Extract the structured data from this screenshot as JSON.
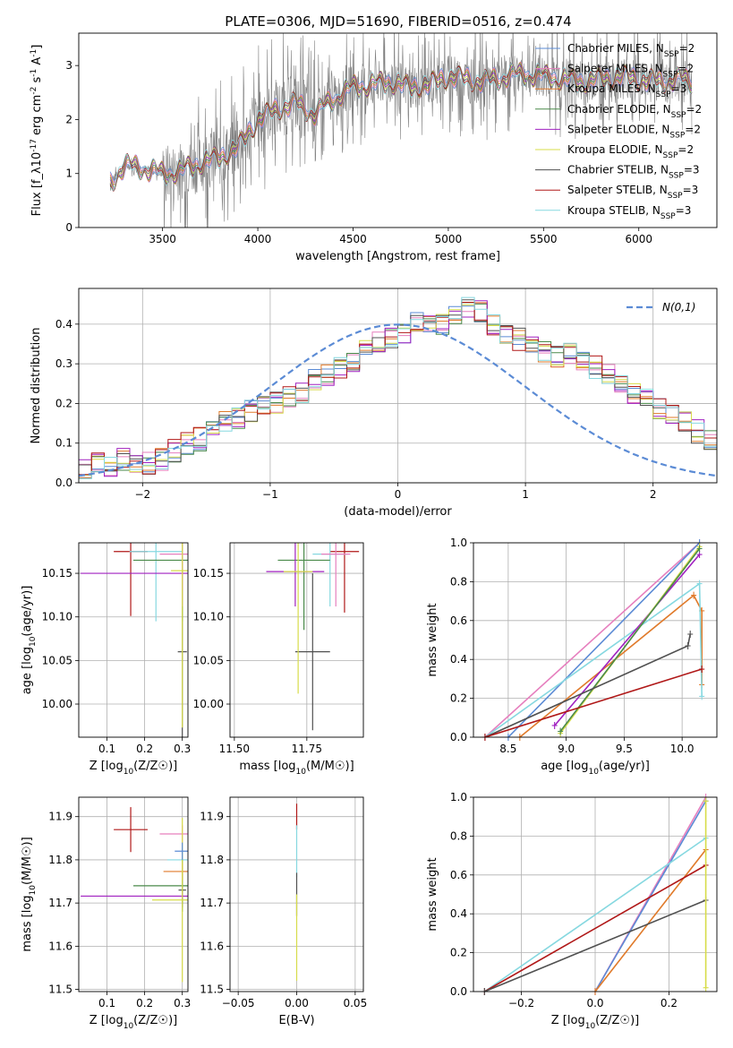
{
  "title": "PLATE=0306, MJD=51690, FIBERID=0516, z=0.474",
  "colors": {
    "chabrier_miles": "#5b8bd5",
    "salpeter_miles": "#e67fbe",
    "kroupa_miles": "#e07a2a",
    "chabrier_elodie": "#4a8a4a",
    "salpeter_elodie": "#a020c0",
    "kroupa_elodie": "#d7dc4a",
    "chabrier_stelib": "#505050",
    "salpeter_stelib": "#b01818",
    "kroupa_stelib": "#86d8e0",
    "data": "#808080",
    "normal": "#5b8bd5"
  },
  "chart_data": [
    {
      "id": "spectrum",
      "type": "line",
      "title": "PLATE=0306, MJD=51690, FIBERID=0516, z=0.474",
      "xlabel": "wavelength [Angstrom, rest frame]",
      "ylabel": "Flux [f_λ10^{-17} erg cm^{-2} s^{-1} A^{-1}]",
      "xlim": [
        3060,
        6410
      ],
      "ylim": [
        0,
        3.6
      ],
      "xticks": [
        3500,
        4000,
        4500,
        5000,
        5500,
        6000
      ],
      "yticks": [
        0,
        1,
        2,
        3
      ],
      "legend_position": "top-right",
      "legend": [
        {
          "label": "Chabrier MILES, N_SSP=2",
          "color": "#5b8bd5"
        },
        {
          "label": "Salpeter MILES, N_SSP=2",
          "color": "#e67fbe"
        },
        {
          "label": "Kroupa MILES, N_SSP=3",
          "color": "#e07a2a"
        },
        {
          "label": "Chabrier ELODIE, N_SSP=2",
          "color": "#4a8a4a"
        },
        {
          "label": "Salpeter ELODIE, N_SSP=2",
          "color": "#a020c0"
        },
        {
          "label": "Kroupa ELODIE, N_SSP=2",
          "color": "#d7dc4a"
        },
        {
          "label": "Chabrier STELIB, N_SSP=3",
          "color": "#505050"
        },
        {
          "label": "Salpeter STELIB, N_SSP=3",
          "color": "#b01818"
        },
        {
          "label": "Kroupa STELIB, N_SSP=3",
          "color": "#86d8e0"
        }
      ],
      "continuum_x": [
        3220,
        3300,
        3400,
        3500,
        3600,
        3700,
        3800,
        3900,
        4000,
        4100,
        4200,
        4300,
        4400,
        4500,
        4600,
        4700,
        4800,
        4900,
        5000,
        5100,
        5200,
        5300,
        5400,
        5500,
        5600,
        5700,
        5800,
        5900,
        6000,
        6100,
        6200,
        6280
      ],
      "continuum_y": [
        0.8,
        1.15,
        1.1,
        1.0,
        1.05,
        1.2,
        1.3,
        1.5,
        2.0,
        2.2,
        2.3,
        2.1,
        2.4,
        2.6,
        2.65,
        2.7,
        2.6,
        2.65,
        2.8,
        2.75,
        2.7,
        2.8,
        2.85,
        2.8,
        2.75,
        2.7,
        2.75,
        2.8,
        2.75,
        2.7,
        2.75,
        2.7
      ]
    },
    {
      "id": "residuals",
      "type": "bar",
      "xlabel": "(data-model)/error",
      "ylabel": "Normed distribution",
      "xlim": [
        -2.5,
        2.5
      ],
      "ylim": [
        0,
        0.49
      ],
      "xticks": [
        -2,
        -1,
        0,
        1,
        2
      ],
      "yticks": [
        0.0,
        0.1,
        0.2,
        0.3,
        0.4
      ],
      "grid": true,
      "legend_position": "top-right",
      "normal_label": "N(0,1)",
      "bin_width": 0.1,
      "hist_envelope": [
        0.02,
        0.03,
        0.05,
        0.04,
        0.06,
        0.05,
        0.05,
        0.06,
        0.08,
        0.1,
        0.11,
        0.13,
        0.15,
        0.16,
        0.18,
        0.2,
        0.2,
        0.22,
        0.23,
        0.26,
        0.27,
        0.29,
        0.3,
        0.33,
        0.35,
        0.37,
        0.38,
        0.4,
        0.41,
        0.4,
        0.42,
        0.44,
        0.43,
        0.4,
        0.38,
        0.36,
        0.35,
        0.33,
        0.32,
        0.33,
        0.31,
        0.29,
        0.27,
        0.24,
        0.22,
        0.21,
        0.19,
        0.17,
        0.15,
        0.13,
        0.11,
        0.1
      ]
    },
    {
      "id": "age_vs_Z",
      "type": "scatter",
      "xlabel": "Z [log10(Z/Z☉)]",
      "ylabel": "age [log10(age/yr)]",
      "xlim": [
        0.025,
        0.315
      ],
      "ylim": [
        9.962,
        10.185
      ],
      "xticks": [
        0.1,
        0.2,
        0.3
      ],
      "yticks": [
        10.0,
        10.05,
        10.1,
        10.15
      ],
      "grid": true,
      "points": [
        {
          "x": 0.163,
          "y": 10.175,
          "xerr": 0.045,
          "yerr": 0.074,
          "color": "#b01818"
        },
        {
          "x": 0.3,
          "y": 10.06,
          "xerr": 0.012,
          "yerr": 0.1,
          "color": "#505050"
        },
        {
          "x": 0.23,
          "y": 10.175,
          "xerr": 0.07,
          "yerr": 0.08,
          "color": "#86d8e0"
        },
        {
          "x": 0.3,
          "y": 10.165,
          "xerr": 0.13,
          "yerr": 0.07,
          "color": "#4a8a4a"
        },
        {
          "x": 0.3,
          "y": 10.15,
          "xerr": 0.27,
          "yerr": 0.02,
          "color": "#a020c0"
        },
        {
          "x": 0.3,
          "y": 10.172,
          "xerr": 0.06,
          "yerr": 0.06,
          "color": "#e67fbe"
        },
        {
          "x": 0.3,
          "y": 10.153,
          "xerr": 0.03,
          "yerr": 0.18,
          "color": "#d7dc4a"
        }
      ]
    },
    {
      "id": "age_vs_mass",
      "type": "scatter",
      "xlabel": "mass [log10(M/M☉)]",
      "ylabel": "",
      "xlim": [
        11.485,
        11.945
      ],
      "ylim": [
        9.962,
        10.185
      ],
      "xticks": [
        11.5,
        11.75
      ],
      "yticks": [
        10.0,
        10.05,
        10.1,
        10.15
      ],
      "grid": true,
      "points": [
        {
          "x": 11.88,
          "y": 10.175,
          "xerr": 0.05,
          "yerr": 0.07,
          "color": "#b01818"
        },
        {
          "x": 11.77,
          "y": 10.06,
          "xerr": 0.06,
          "yerr": 0.09,
          "color": "#505050"
        },
        {
          "x": 11.83,
          "y": 10.172,
          "xerr": 0.06,
          "yerr": 0.06,
          "color": "#86d8e0"
        },
        {
          "x": 11.74,
          "y": 10.165,
          "xerr": 0.09,
          "yerr": 0.08,
          "color": "#4a8a4a"
        },
        {
          "x": 11.71,
          "y": 10.152,
          "xerr": 0.1,
          "yerr": 0.04,
          "color": "#a020c0"
        },
        {
          "x": 11.85,
          "y": 10.172,
          "xerr": 0.05,
          "yerr": 0.06,
          "color": "#e67fbe"
        },
        {
          "x": 11.72,
          "y": 10.152,
          "xerr": 0.05,
          "yerr": 0.14,
          "color": "#d7dc4a"
        }
      ]
    },
    {
      "id": "massweight_vs_age",
      "type": "line",
      "xlabel": "age [log10(age/yr)]",
      "ylabel": "mass weight",
      "xlim": [
        8.2,
        10.3
      ],
      "ylim": [
        0,
        1.0
      ],
      "xticks": [
        8.5,
        9.0,
        9.5,
        10.0
      ],
      "yticks": [
        0.0,
        0.2,
        0.4,
        0.6,
        0.8,
        1.0
      ],
      "grid": true,
      "series": [
        {
          "color": "#e67fbe",
          "x": [
            8.3,
            10.15
          ],
          "y": [
            0.0,
            1.0
          ]
        },
        {
          "color": "#5b8bd5",
          "x": [
            8.5,
            10.15
          ],
          "y": [
            0.0,
            1.0
          ]
        },
        {
          "color": "#e07a2a",
          "x": [
            8.6,
            10.1,
            10.17,
            10.17
          ],
          "y": [
            0.0,
            0.73,
            0.65,
            0.27
          ]
        },
        {
          "color": "#86d8e0",
          "x": [
            8.3,
            10.15,
            10.17
          ],
          "y": [
            0.0,
            0.79,
            0.21
          ]
        },
        {
          "color": "#a020c0",
          "x": [
            8.9,
            10.15
          ],
          "y": [
            0.06,
            0.94
          ]
        },
        {
          "color": "#d7dc4a",
          "x": [
            8.95,
            10.15
          ],
          "y": [
            0.02,
            0.98
          ]
        },
        {
          "color": "#4a8a4a",
          "x": [
            8.95,
            10.15
          ],
          "y": [
            0.03,
            0.97
          ]
        },
        {
          "color": "#505050",
          "x": [
            8.3,
            10.05,
            10.07
          ],
          "y": [
            0.0,
            0.47,
            0.53
          ]
        },
        {
          "color": "#b01818",
          "x": [
            8.3,
            10.17
          ],
          "y": [
            0.0,
            0.35
          ]
        }
      ]
    },
    {
      "id": "mass_vs_Z",
      "type": "scatter",
      "xlabel": "Z [log10(Z/Z☉)]",
      "ylabel": "mass [log10(M/M☉)]",
      "xlim": [
        0.025,
        0.315
      ],
      "ylim": [
        11.495,
        11.945
      ],
      "xticks": [
        0.1,
        0.2,
        0.3
      ],
      "yticks": [
        11.5,
        11.6,
        11.7,
        11.8,
        11.9
      ],
      "grid": true,
      "points": [
        {
          "x": 0.163,
          "y": 11.87,
          "xerr": 0.045,
          "yerr": 0.052,
          "color": "#b01818"
        },
        {
          "x": 0.3,
          "y": 11.73,
          "xerr": 0.01,
          "yerr": 0.04,
          "color": "#505050"
        },
        {
          "x": 0.3,
          "y": 11.8,
          "xerr": 0.04,
          "yerr": 0.02,
          "color": "#86d8e0"
        },
        {
          "x": 0.3,
          "y": 11.74,
          "xerr": 0.13,
          "yerr": 0.06,
          "color": "#4a8a4a"
        },
        {
          "x": 0.3,
          "y": 11.716,
          "xerr": 0.27,
          "yerr": 0.01,
          "color": "#a020c0"
        },
        {
          "x": 0.3,
          "y": 11.86,
          "xerr": 0.06,
          "yerr": 0.02,
          "color": "#e67fbe"
        },
        {
          "x": 0.3,
          "y": 11.773,
          "xerr": 0.05,
          "yerr": 0.02,
          "color": "#e07a2a"
        },
        {
          "x": 0.3,
          "y": 11.707,
          "xerr": 0.08,
          "yerr": 0.19,
          "color": "#d7dc4a"
        },
        {
          "x": 0.3,
          "y": 11.82,
          "xerr": 0.02,
          "yerr": 0.02,
          "color": "#5b8bd5"
        }
      ]
    },
    {
      "id": "mass_vs_ebv",
      "type": "scatter",
      "xlabel": "E(B-V)",
      "ylabel": "",
      "xlim": [
        -0.057,
        0.057
      ],
      "ylim": [
        11.495,
        11.945
      ],
      "xticks": [
        -0.05,
        0.0,
        0.05
      ],
      "yticks": [
        11.5,
        11.6,
        11.7,
        11.8,
        11.9
      ],
      "grid": true,
      "points": [
        {
          "x": 0.0,
          "y": 11.9,
          "yerr": 0.03,
          "color": "#b01818"
        },
        {
          "x": 0.0,
          "y": 11.82,
          "yerr": 0.06,
          "color": "#86d8e0"
        },
        {
          "x": 0.0,
          "y": 11.72,
          "yerr": 0.05,
          "color": "#505050"
        },
        {
          "x": 0.0,
          "y": 11.62,
          "yerr": 0.1,
          "color": "#d7dc4a"
        }
      ]
    },
    {
      "id": "massweight_vs_Z",
      "type": "line",
      "xlabel": "Z [log10(Z/Z☉)]",
      "ylabel": "mass weight",
      "xlim": [
        -0.33,
        0.33
      ],
      "ylim": [
        0,
        1.0
      ],
      "xticks": [
        -0.2,
        0.0,
        0.2
      ],
      "yticks": [
        0.0,
        0.2,
        0.4,
        0.6,
        0.8,
        1.0
      ],
      "grid": true,
      "series": [
        {
          "color": "#e67fbe",
          "x": [
            0.0,
            0.3
          ],
          "y": [
            0.0,
            1.0
          ]
        },
        {
          "color": "#5b8bd5",
          "x": [
            0.0,
            0.3
          ],
          "y": [
            0.0,
            0.98
          ]
        },
        {
          "color": "#e07a2a",
          "x": [
            0.0,
            0.3
          ],
          "y": [
            0.0,
            0.73
          ]
        },
        {
          "color": "#86d8e0",
          "x": [
            -0.3,
            0.3
          ],
          "y": [
            0.0,
            0.79
          ]
        },
        {
          "color": "#b01818",
          "x": [
            -0.3,
            0.3
          ],
          "y": [
            0.0,
            0.65
          ]
        },
        {
          "color": "#505050",
          "x": [
            -0.3,
            0.3
          ],
          "y": [
            0.0,
            0.47
          ]
        },
        {
          "color": "#d7dc4a",
          "x": [
            0.3,
            0.3
          ],
          "y": [
            0.02,
            0.98
          ]
        }
      ]
    }
  ]
}
